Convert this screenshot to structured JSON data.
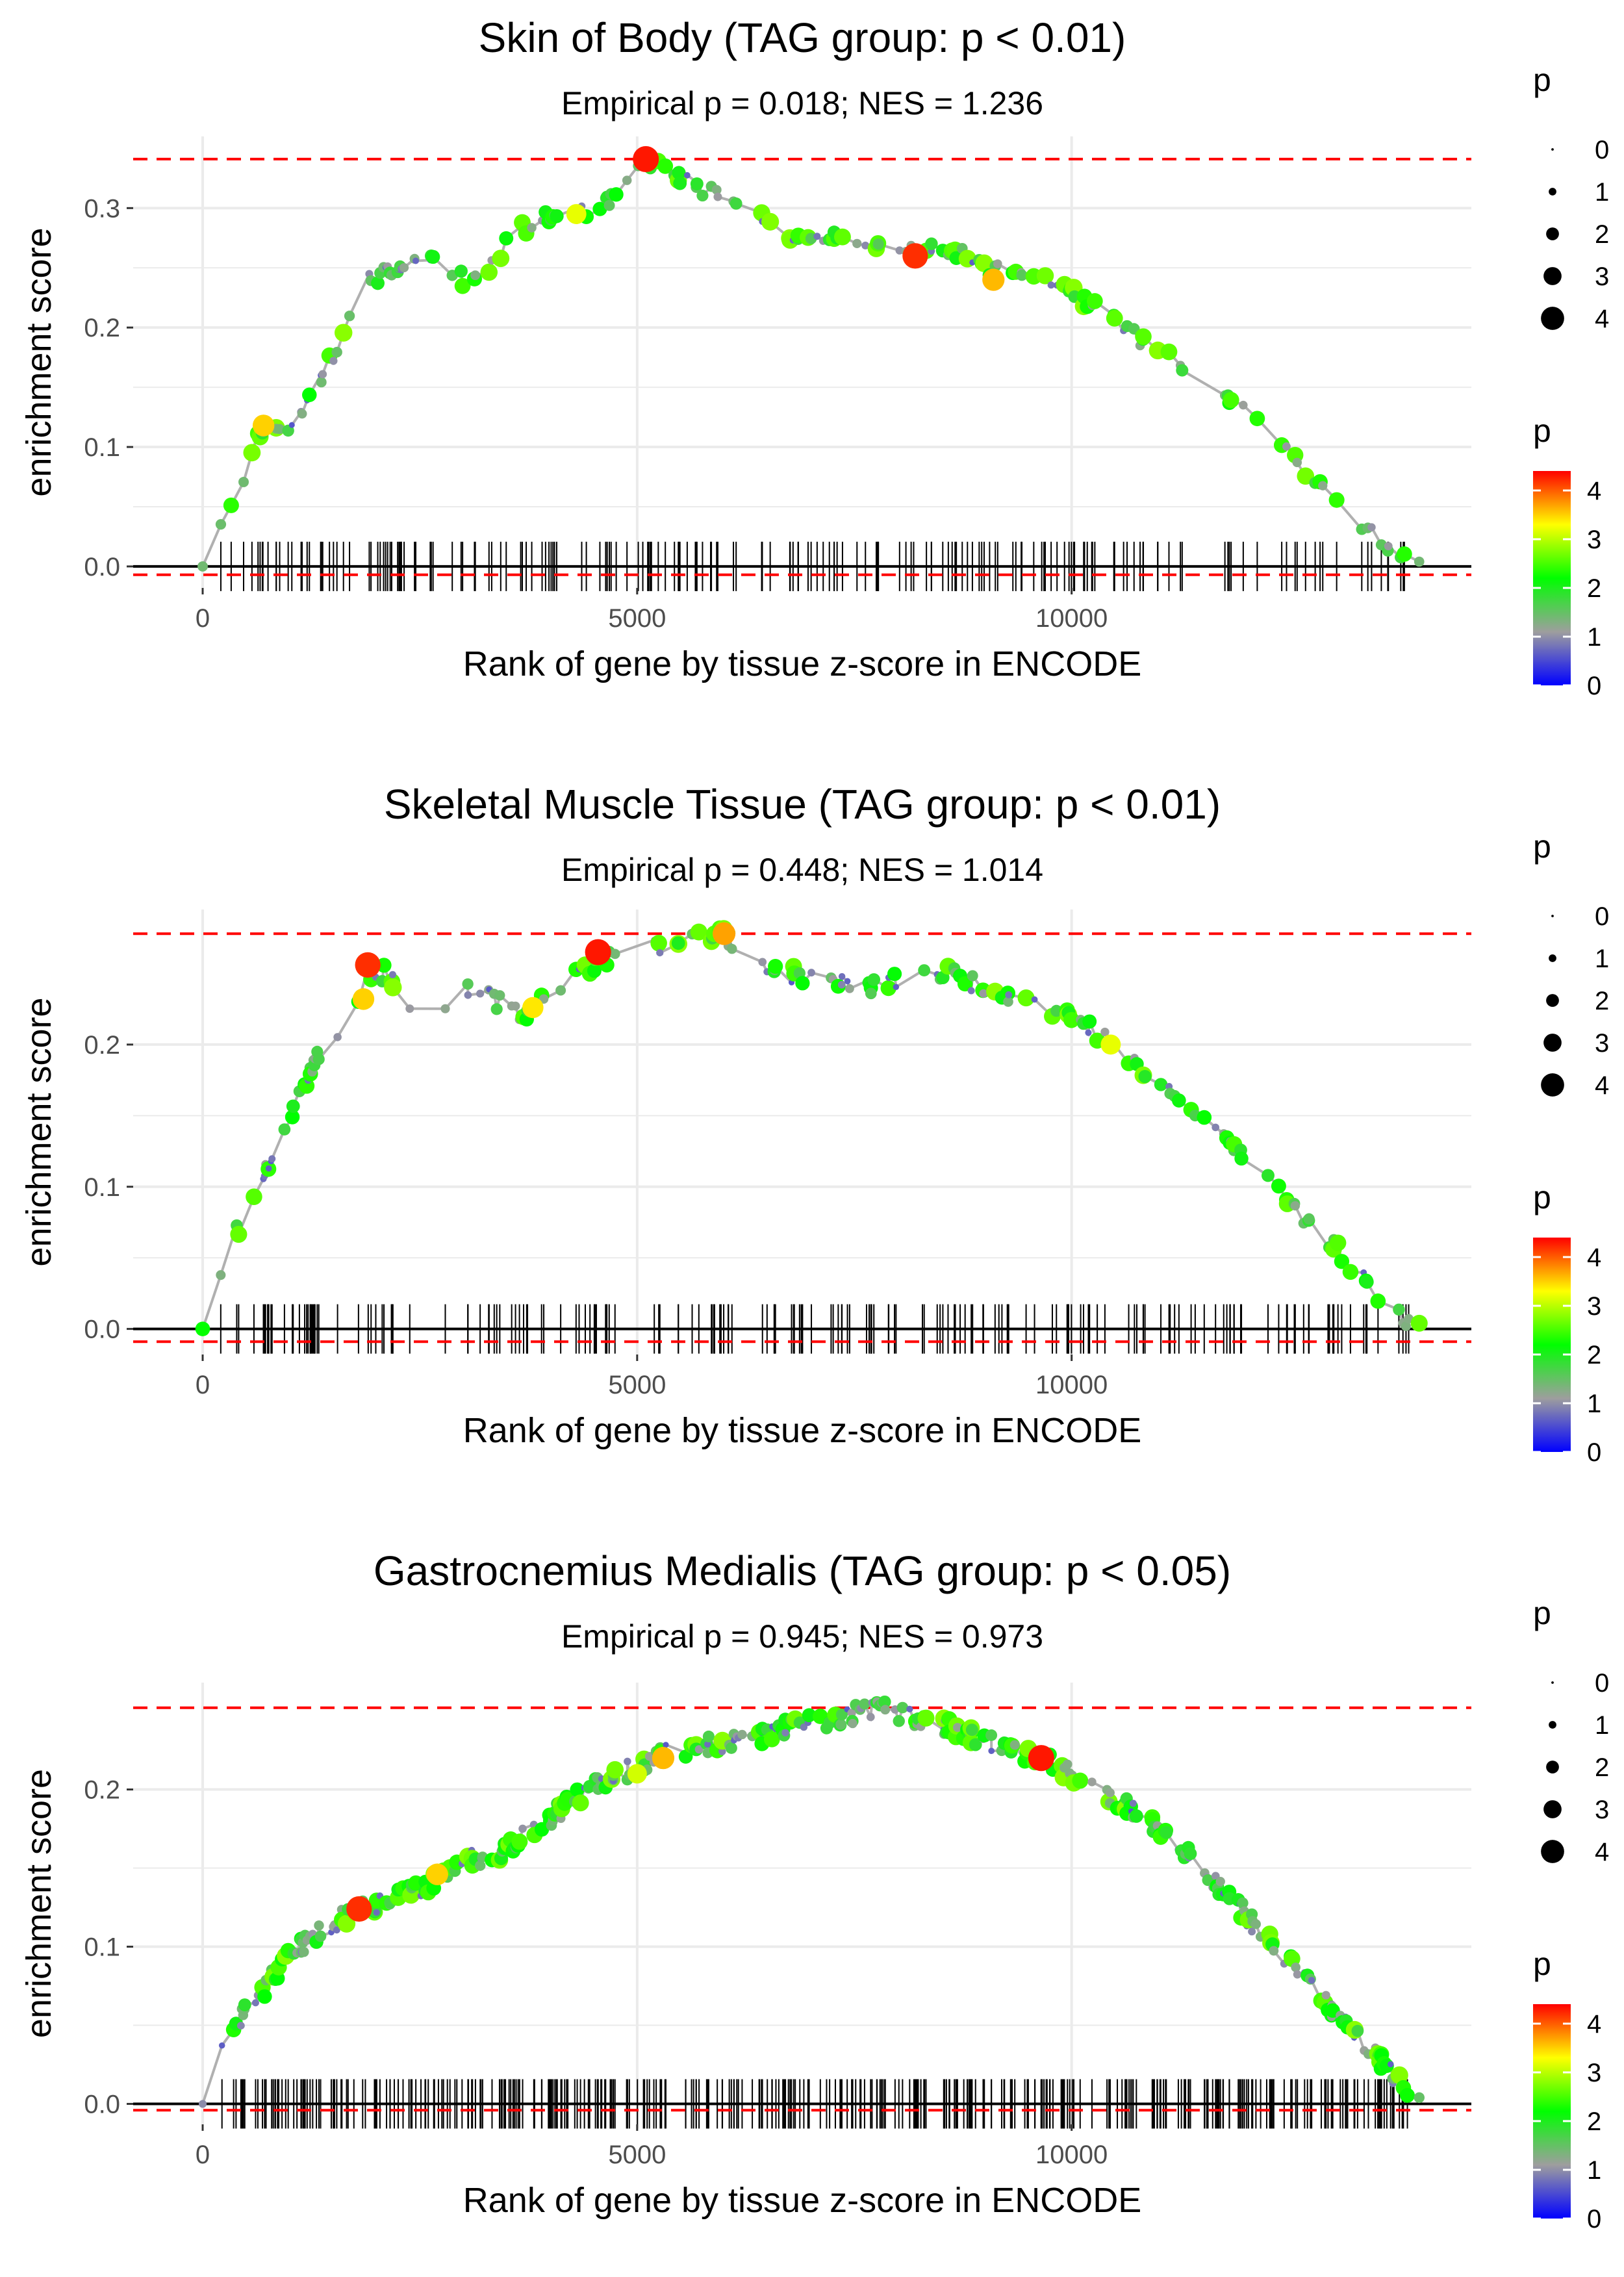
{
  "colors": {
    "gradient": [
      "#0000ff",
      "#9e9e9e",
      "#00ff00",
      "#ffff00",
      "#ff0000"
    ],
    "threshold_line": "#ff0000",
    "running_line": "#b0b0b0",
    "zero_line": "#000000",
    "grid": "#ebebeb",
    "tick_marks": "#000000"
  },
  "chart_data": [
    {
      "type": "scatter",
      "title": "Skin of Body (TAG group: p < 0.01)",
      "subtitle": "Empirical p = 0.018; NES = 1.236",
      "xlabel": "Rank of gene by tissue z-score in ENCODE",
      "ylabel": "enrichment score",
      "xlim": [
        -800,
        14600
      ],
      "ylim": [
        -0.018,
        0.36
      ],
      "x_ticks": [
        0,
        5000,
        10000
      ],
      "x_tick_labels": [
        "0",
        "5000",
        "10000"
      ],
      "y_ticks": [
        0.0,
        0.1,
        0.2,
        0.3
      ],
      "y_tick_labels": [
        "0.0",
        "0.1",
        "0.2",
        "0.3"
      ],
      "max_es": 0.341,
      "min_es": -0.007,
      "gene_count": 200,
      "max_rank": 14000,
      "seed": 11,
      "curve": [
        [
          0,
          0
        ],
        [
          150,
          0.02
        ],
        [
          400,
          0.06
        ],
        [
          700,
          0.12
        ],
        [
          1000,
          0.11
        ],
        [
          1300,
          0.15
        ],
        [
          1600,
          0.19
        ],
        [
          1900,
          0.24
        ],
        [
          2300,
          0.25
        ],
        [
          2600,
          0.26
        ],
        [
          2800,
          0.25
        ],
        [
          3000,
          0.24
        ],
        [
          3200,
          0.24
        ],
        [
          3600,
          0.28
        ],
        [
          3900,
          0.29
        ],
        [
          4200,
          0.295
        ],
        [
          4600,
          0.3
        ],
        [
          4900,
          0.32
        ],
        [
          5100,
          0.341
        ],
        [
          5500,
          0.325
        ],
        [
          6200,
          0.3
        ],
        [
          7000,
          0.27
        ],
        [
          7400,
          0.28
        ],
        [
          8000,
          0.26
        ],
        [
          8500,
          0.27
        ],
        [
          9000,
          0.25
        ],
        [
          9600,
          0.245
        ],
        [
          10000,
          0.23
        ],
        [
          11000,
          0.18
        ],
        [
          12000,
          0.13
        ],
        [
          13000,
          0.06
        ],
        [
          13800,
          0.005
        ]
      ],
      "highlights": [
        {
          "x": 5100,
          "y": 0.341,
          "p": 4.3
        },
        {
          "x": 8200,
          "y": 0.26,
          "p": 4.2
        },
        {
          "x": 9100,
          "y": 0.24,
          "p": 3.6
        },
        {
          "x": 700,
          "y": 0.118,
          "p": 3.5
        },
        {
          "x": 4300,
          "y": 0.295,
          "p": 3.2
        }
      ],
      "size_legend": {
        "title": "p",
        "labels": [
          "0",
          "1",
          "2",
          "3",
          "4"
        ]
      },
      "color_legend": {
        "title": "p",
        "labels": [
          "4",
          "3",
          "2",
          "1",
          "0"
        ]
      }
    },
    {
      "type": "scatter",
      "title": "Skeletal Muscle Tissue (TAG group: p < 0.01)",
      "subtitle": "Empirical p = 0.448; NES = 1.014",
      "xlabel": "Rank of gene by tissue z-score in ENCODE",
      "ylabel": "enrichment score",
      "xlim": [
        -800,
        14600
      ],
      "ylim": [
        -0.018,
        0.295
      ],
      "x_ticks": [
        0,
        5000,
        10000
      ],
      "x_tick_labels": [
        "0",
        "5000",
        "10000"
      ],
      "y_ticks": [
        0.0,
        0.1,
        0.2
      ],
      "y_tick_labels": [
        "0.0",
        "0.1",
        "0.2"
      ],
      "max_es": 0.278,
      "min_es": -0.009,
      "gene_count": 200,
      "max_rank": 14000,
      "seed": 23,
      "curve": [
        [
          0,
          0
        ],
        [
          150,
          0.03
        ],
        [
          400,
          0.07
        ],
        [
          700,
          0.11
        ],
        [
          1000,
          0.15
        ],
        [
          1300,
          0.19
        ],
        [
          1600,
          0.21
        ],
        [
          1900,
          0.25
        ],
        [
          2100,
          0.25
        ],
        [
          2400,
          0.23
        ],
        [
          2800,
          0.22
        ],
        [
          3100,
          0.24
        ],
        [
          3400,
          0.23
        ],
        [
          3700,
          0.22
        ],
        [
          4000,
          0.24
        ],
        [
          4300,
          0.25
        ],
        [
          4600,
          0.26
        ],
        [
          5000,
          0.265
        ],
        [
          5500,
          0.275
        ],
        [
          6000,
          0.278
        ],
        [
          6300,
          0.26
        ],
        [
          6700,
          0.25
        ],
        [
          7200,
          0.245
        ],
        [
          7700,
          0.24
        ],
        [
          8200,
          0.25
        ],
        [
          8600,
          0.25
        ],
        [
          9000,
          0.24
        ],
        [
          9600,
          0.23
        ],
        [
          10000,
          0.22
        ],
        [
          10500,
          0.2
        ],
        [
          11000,
          0.17
        ],
        [
          11500,
          0.15
        ],
        [
          12000,
          0.12
        ],
        [
          12500,
          0.09
        ],
        [
          13000,
          0.06
        ],
        [
          13500,
          0.025
        ],
        [
          13900,
          0.005
        ]
      ],
      "highlights": [
        {
          "x": 4550,
          "y": 0.265,
          "p": 4.3
        },
        {
          "x": 1900,
          "y": 0.256,
          "p": 4.2
        },
        {
          "x": 6000,
          "y": 0.278,
          "p": 3.7
        },
        {
          "x": 1850,
          "y": 0.232,
          "p": 3.5
        },
        {
          "x": 10450,
          "y": 0.2,
          "p": 3.2
        },
        {
          "x": 3800,
          "y": 0.226,
          "p": 3.4
        }
      ],
      "size_legend": {
        "title": "p",
        "labels": [
          "0",
          "1",
          "2",
          "3",
          "4"
        ]
      },
      "color_legend": {
        "title": "p",
        "labels": [
          "4",
          "3",
          "2",
          "1",
          "0"
        ]
      }
    },
    {
      "type": "scatter",
      "title": "Gastrocnemius Medialis (TAG group: p < 0.05)",
      "subtitle": "Empirical p = 0.945; NES = 0.973",
      "xlabel": "Rank of gene by tissue z-score in ENCODE",
      "ylabel": "enrichment score",
      "xlim": [
        -800,
        14600
      ],
      "ylim": [
        -0.013,
        0.268
      ],
      "x_ticks": [
        0,
        5000,
        10000
      ],
      "x_tick_labels": [
        "0",
        "5000",
        "10000"
      ],
      "y_ticks": [
        0.0,
        0.1,
        0.2
      ],
      "y_tick_labels": [
        "0.0",
        "0.1",
        "0.2"
      ],
      "max_es": 0.252,
      "min_es": -0.004,
      "gene_count": 420,
      "max_rank": 14000,
      "seed": 37,
      "curve": [
        [
          0,
          0
        ],
        [
          200,
          0.03
        ],
        [
          500,
          0.06
        ],
        [
          800,
          0.08
        ],
        [
          1100,
          0.1
        ],
        [
          1500,
          0.115
        ],
        [
          1800,
          0.125
        ],
        [
          2200,
          0.13
        ],
        [
          2600,
          0.14
        ],
        [
          3000,
          0.155
        ],
        [
          3400,
          0.16
        ],
        [
          3800,
          0.175
        ],
        [
          4200,
          0.19
        ],
        [
          4600,
          0.205
        ],
        [
          5000,
          0.215
        ],
        [
          5400,
          0.225
        ],
        [
          5800,
          0.228
        ],
        [
          6300,
          0.232
        ],
        [
          6800,
          0.24
        ],
        [
          7300,
          0.245
        ],
        [
          7800,
          0.252
        ],
        [
          8200,
          0.245
        ],
        [
          8600,
          0.24
        ],
        [
          9000,
          0.23
        ],
        [
          9600,
          0.22
        ],
        [
          10000,
          0.21
        ],
        [
          10500,
          0.195
        ],
        [
          11000,
          0.175
        ],
        [
          11500,
          0.15
        ],
        [
          12000,
          0.12
        ],
        [
          12500,
          0.09
        ],
        [
          13000,
          0.06
        ],
        [
          13500,
          0.03
        ],
        [
          13900,
          0.005
        ]
      ],
      "highlights": [
        {
          "x": 9650,
          "y": 0.22,
          "p": 4.3
        },
        {
          "x": 1800,
          "y": 0.124,
          "p": 4.2
        },
        {
          "x": 5300,
          "y": 0.22,
          "p": 3.6
        },
        {
          "x": 2700,
          "y": 0.146,
          "p": 3.5
        },
        {
          "x": 5000,
          "y": 0.21,
          "p": 3.1
        }
      ],
      "size_legend": {
        "title": "p",
        "labels": [
          "0",
          "1",
          "2",
          "3",
          "4"
        ]
      },
      "color_legend": {
        "title": "p",
        "labels": [
          "4",
          "3",
          "2",
          "1",
          "0"
        ]
      }
    }
  ]
}
